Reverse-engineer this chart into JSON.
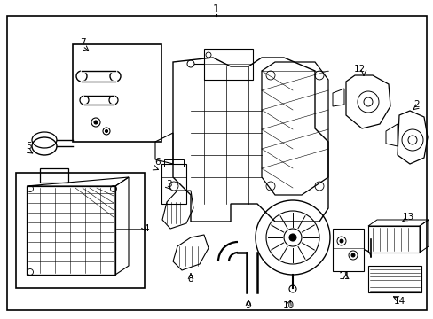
{
  "background_color": "#ffffff",
  "line_color": "#000000",
  "lw_main": 1.0,
  "lw_thin": 0.5,
  "fontsize": 7.5
}
